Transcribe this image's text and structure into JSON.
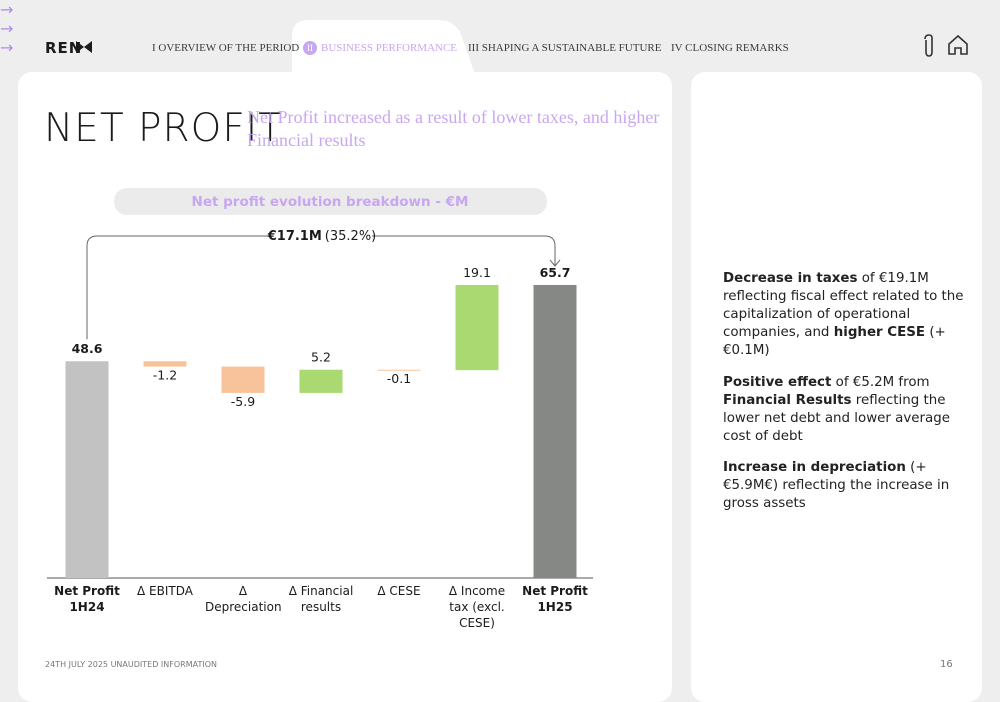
{
  "nav": {
    "logo": "REN",
    "items": [
      {
        "label": "I OVERVIEW OF THE PERIOD"
      },
      {
        "badge": "II",
        "label": "BUSINESS PERFORMANCE"
      },
      {
        "label": "III SHAPING A SUSTAINABLE FUTURE"
      },
      {
        "label": "IV CLOSING REMARKS"
      }
    ]
  },
  "header": {
    "title": "NET PROFIT",
    "subtitle": "Net Profit increased as a result of lower taxes, and higher Financial results"
  },
  "chart_data": {
    "type": "waterfall",
    "title": "Net profit evolution breakdown - €M",
    "categories": [
      "Net Profit 1H24",
      "Δ EBITDA",
      "Δ Depreciation",
      "Δ Financial results",
      "Δ CESE",
      "Δ Income tax (excl. CESE)",
      "Net Profit 1H25"
    ],
    "values": [
      48.6,
      -1.2,
      -5.9,
      5.2,
      -0.1,
      19.1,
      65.7
    ],
    "totals": [
      0,
      6
    ],
    "colors": {
      "first_total": "#c2c2c2",
      "last_total": "#858884",
      "increase": "#a9d970",
      "decrease": "#f8c39a"
    },
    "annotation": {
      "amount": "€17.1M",
      "change": "(35.2%)"
    }
  },
  "bullets": [
    [
      {
        "text": "Decrease in taxes",
        "bold": true
      },
      {
        "text": " of €19.1M reflecting fiscal effect related to the capitalization of operational companies, and ",
        "bold": false
      },
      {
        "text": "higher CESE",
        "bold": true
      },
      {
        "text": " (+€0.1M)",
        "bold": false
      }
    ],
    [
      {
        "text": "Positive effect",
        "bold": true
      },
      {
        "text": " of €5.2M from ",
        "bold": false
      },
      {
        "text": "Financial Results",
        "bold": true
      },
      {
        "text": " reflecting the lower net debt and lower average cost of debt",
        "bold": false
      }
    ],
    [
      {
        "text": "Increase in depreciation",
        "bold": true
      },
      {
        "text": " (+€5.9M€) reflecting the increase in gross assets",
        "bold": false
      }
    ]
  ],
  "footer": {
    "note": "24TH JULY 2025 UNAUDITED INFORMATION",
    "page": "16"
  }
}
